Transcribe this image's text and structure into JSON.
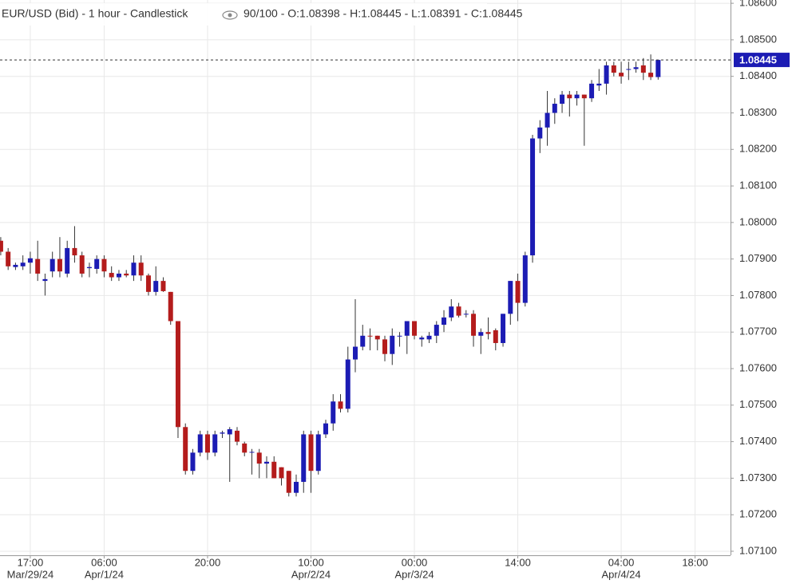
{
  "chart_data": {
    "type": "candlestick",
    "title": "EUR/USD (Bid) - 1 hour - Candlestick",
    "subtitle": "90/100 - O:1.08398 - H:1.08445 - L:1.08391 - C:1.08445",
    "up_color": "#1c1cb4",
    "down_color": "#b41c1c",
    "grid": true,
    "open": [
      1.0795,
      1.0792,
      1.07878,
      1.0788,
      1.0789,
      1.079,
      1.0784,
      1.07866,
      1.079,
      1.0786,
      1.0793,
      1.0791,
      1.07875,
      1.07873,
      1.079,
      1.07862,
      1.0785,
      1.0786,
      1.07855,
      1.0789,
      1.07855,
      1.0781,
      1.0784,
      1.0781,
      1.0773,
      1.0744,
      1.0732,
      1.0737,
      1.0742,
      1.0737,
      1.07422,
      1.0742,
      1.0743,
      1.07395,
      1.0737,
      1.0737,
      1.0734,
      1.07345,
      1.0733,
      1.0732,
      1.0726,
      1.0729,
      1.0742,
      1.0732,
      1.0742,
      1.0745,
      1.0751,
      1.0749,
      1.07625,
      1.0766,
      1.0769,
      1.0769,
      1.0768,
      1.0764,
      1.07688,
      1.0769,
      1.0773,
      1.0768,
      1.0768,
      1.0769,
      1.0772,
      1.0774,
      1.0777,
      1.07748,
      1.0775,
      1.0769,
      1.077,
      1.07705,
      1.0767,
      1.0775,
      1.0784,
      1.0778,
      1.0791,
      1.0823,
      1.0826,
      1.083,
      1.08325,
      1.0835,
      1.0834,
      1.0835,
      1.0834,
      1.08375,
      1.0838,
      1.0843,
      1.0841,
      1.08418,
      1.0842,
      1.0843,
      1.0841,
      1.08398
    ],
    "high": [
      1.0796,
      1.0793,
      1.0789,
      1.0791,
      1.0792,
      1.0795,
      1.0786,
      1.0792,
      1.0796,
      1.0795,
      1.0799,
      1.0792,
      1.0789,
      1.0791,
      1.0791,
      1.0788,
      1.0787,
      1.0787,
      1.0791,
      1.0791,
      1.0786,
      1.0788,
      1.0785,
      1.0781,
      1.0773,
      1.0745,
      1.0738,
      1.0743,
      1.0743,
      1.0743,
      1.0743,
      1.0744,
      1.0744,
      1.074,
      1.0738,
      1.0738,
      1.0736,
      1.0736,
      1.0733,
      1.0732,
      1.0731,
      1.0743,
      1.0743,
      1.0743,
      1.0746,
      1.0753,
      1.0753,
      1.0766,
      1.0779,
      1.0772,
      1.0771,
      1.0769,
      1.0769,
      1.0771,
      1.077,
      1.0773,
      1.0773,
      1.0769,
      1.077,
      1.0773,
      1.0776,
      1.0779,
      1.0778,
      1.0776,
      1.0776,
      1.0771,
      1.0774,
      1.0771,
      1.0775,
      1.0784,
      1.0786,
      1.0792,
      1.0824,
      1.0828,
      1.0836,
      1.0834,
      1.0836,
      1.0836,
      1.0836,
      1.0835,
      1.0839,
      1.0842,
      1.0844,
      1.0844,
      1.0844,
      1.0844,
      1.0844,
      1.0845,
      1.0846,
      1.08445
    ],
    "low": [
      1.0791,
      1.0787,
      1.0787,
      1.0787,
      1.0786,
      1.0784,
      1.078,
      1.0785,
      1.0785,
      1.0785,
      1.0789,
      1.0785,
      1.0785,
      1.0786,
      1.0785,
      1.0784,
      1.0784,
      1.0785,
      1.0784,
      1.0784,
      1.078,
      1.078,
      1.0781,
      1.0772,
      1.0741,
      1.0731,
      1.0731,
      1.0736,
      1.0735,
      1.0736,
      1.0741,
      1.0729,
      1.0739,
      1.0736,
      1.0731,
      1.073,
      1.073,
      1.073,
      1.0728,
      1.0725,
      1.0725,
      1.0726,
      1.0726,
      1.0731,
      1.0741,
      1.0743,
      1.0748,
      1.0748,
      1.0759,
      1.0765,
      1.0765,
      1.0765,
      1.0762,
      1.0761,
      1.0766,
      1.0764,
      1.0768,
      1.0766,
      1.0767,
      1.0767,
      1.077,
      1.0773,
      1.0774,
      1.0774,
      1.0766,
      1.0764,
      1.0768,
      1.0765,
      1.0766,
      1.0772,
      1.0773,
      1.0777,
      1.0789,
      1.0819,
      1.0821,
      1.0827,
      1.083,
      1.0829,
      1.0832,
      1.0821,
      1.0833,
      1.0836,
      1.0835,
      1.084,
      1.0838,
      1.0839,
      1.0841,
      1.0839,
      1.0839,
      1.08391
    ],
    "close": [
      1.0792,
      1.0788,
      1.07884,
      1.0789,
      1.07902,
      1.0786,
      1.07845,
      1.079,
      1.07866,
      1.0793,
      1.0791,
      1.0786,
      1.07878,
      1.079,
      1.07866,
      1.0785,
      1.0786,
      1.07855,
      1.0789,
      1.07855,
      1.0781,
      1.0784,
      1.07812,
      1.0773,
      1.0744,
      1.0732,
      1.0737,
      1.0742,
      1.0737,
      1.0742,
      1.07425,
      1.07434,
      1.074,
      1.0737,
      1.07372,
      1.0734,
      1.07345,
      1.073,
      1.073,
      1.0726,
      1.0729,
      1.0742,
      1.0732,
      1.0742,
      1.0745,
      1.0751,
      1.0749,
      1.07625,
      1.0766,
      1.0769,
      1.07688,
      1.0768,
      1.0764,
      1.0769,
      1.0769,
      1.0773,
      1.0769,
      1.07685,
      1.0769,
      1.0772,
      1.0774,
      1.0777,
      1.07745,
      1.0775,
      1.0769,
      1.077,
      1.07695,
      1.0767,
      1.0775,
      1.0784,
      1.0778,
      1.0791,
      1.0823,
      1.0826,
      1.083,
      1.08325,
      1.0835,
      1.0834,
      1.0835,
      1.0834,
      1.0838,
      1.0838,
      1.0843,
      1.0841,
      1.084,
      1.0842,
      1.08425,
      1.0841,
      1.08398,
      1.08445
    ],
    "last_price": 1.08445,
    "xlim": [
      -0.1,
      98.8
    ],
    "xticks": [
      {
        "value": 4,
        "label": "17:00"
      },
      {
        "value": 14,
        "label": "06:00"
      },
      {
        "value": 28,
        "label": "20:00"
      },
      {
        "value": 42,
        "label": "10:00"
      },
      {
        "value": 56,
        "label": "00:00"
      },
      {
        "value": 70,
        "label": "14:00"
      },
      {
        "value": 84,
        "label": "04:00"
      },
      {
        "value": 94,
        "label": "18:00"
      }
    ],
    "xtick_dates": [
      {
        "value": 4,
        "label": "Mar/29/24"
      },
      {
        "value": 14,
        "label": "Apr/1/24"
      },
      {
        "value": 42,
        "label": "Apr/2/24"
      },
      {
        "value": 56,
        "label": "Apr/3/24"
      },
      {
        "value": 84,
        "label": "Apr/4/24"
      }
    ],
    "ylim": [
      1.07089,
      1.08609
    ],
    "yticks": [
      {
        "value": 1.071,
        "label": "1.07100"
      },
      {
        "value": 1.072,
        "label": "1.07200"
      },
      {
        "value": 1.073,
        "label": "1.07300"
      },
      {
        "value": 1.074,
        "label": "1.07400"
      },
      {
        "value": 1.075,
        "label": "1.07500"
      },
      {
        "value": 1.076,
        "label": "1.07600"
      },
      {
        "value": 1.077,
        "label": "1.07700"
      },
      {
        "value": 1.078,
        "label": "1.07800"
      },
      {
        "value": 1.079,
        "label": "1.07900"
      },
      {
        "value": 1.08,
        "label": "1.08000"
      },
      {
        "value": 1.081,
        "label": "1.08100"
      },
      {
        "value": 1.082,
        "label": "1.08200"
      },
      {
        "value": 1.083,
        "label": "1.08300"
      },
      {
        "value": 1.084,
        "label": "1.08400"
      },
      {
        "value": 1.085,
        "label": "1.08500"
      },
      {
        "value": 1.086,
        "label": "1.08600"
      }
    ]
  }
}
